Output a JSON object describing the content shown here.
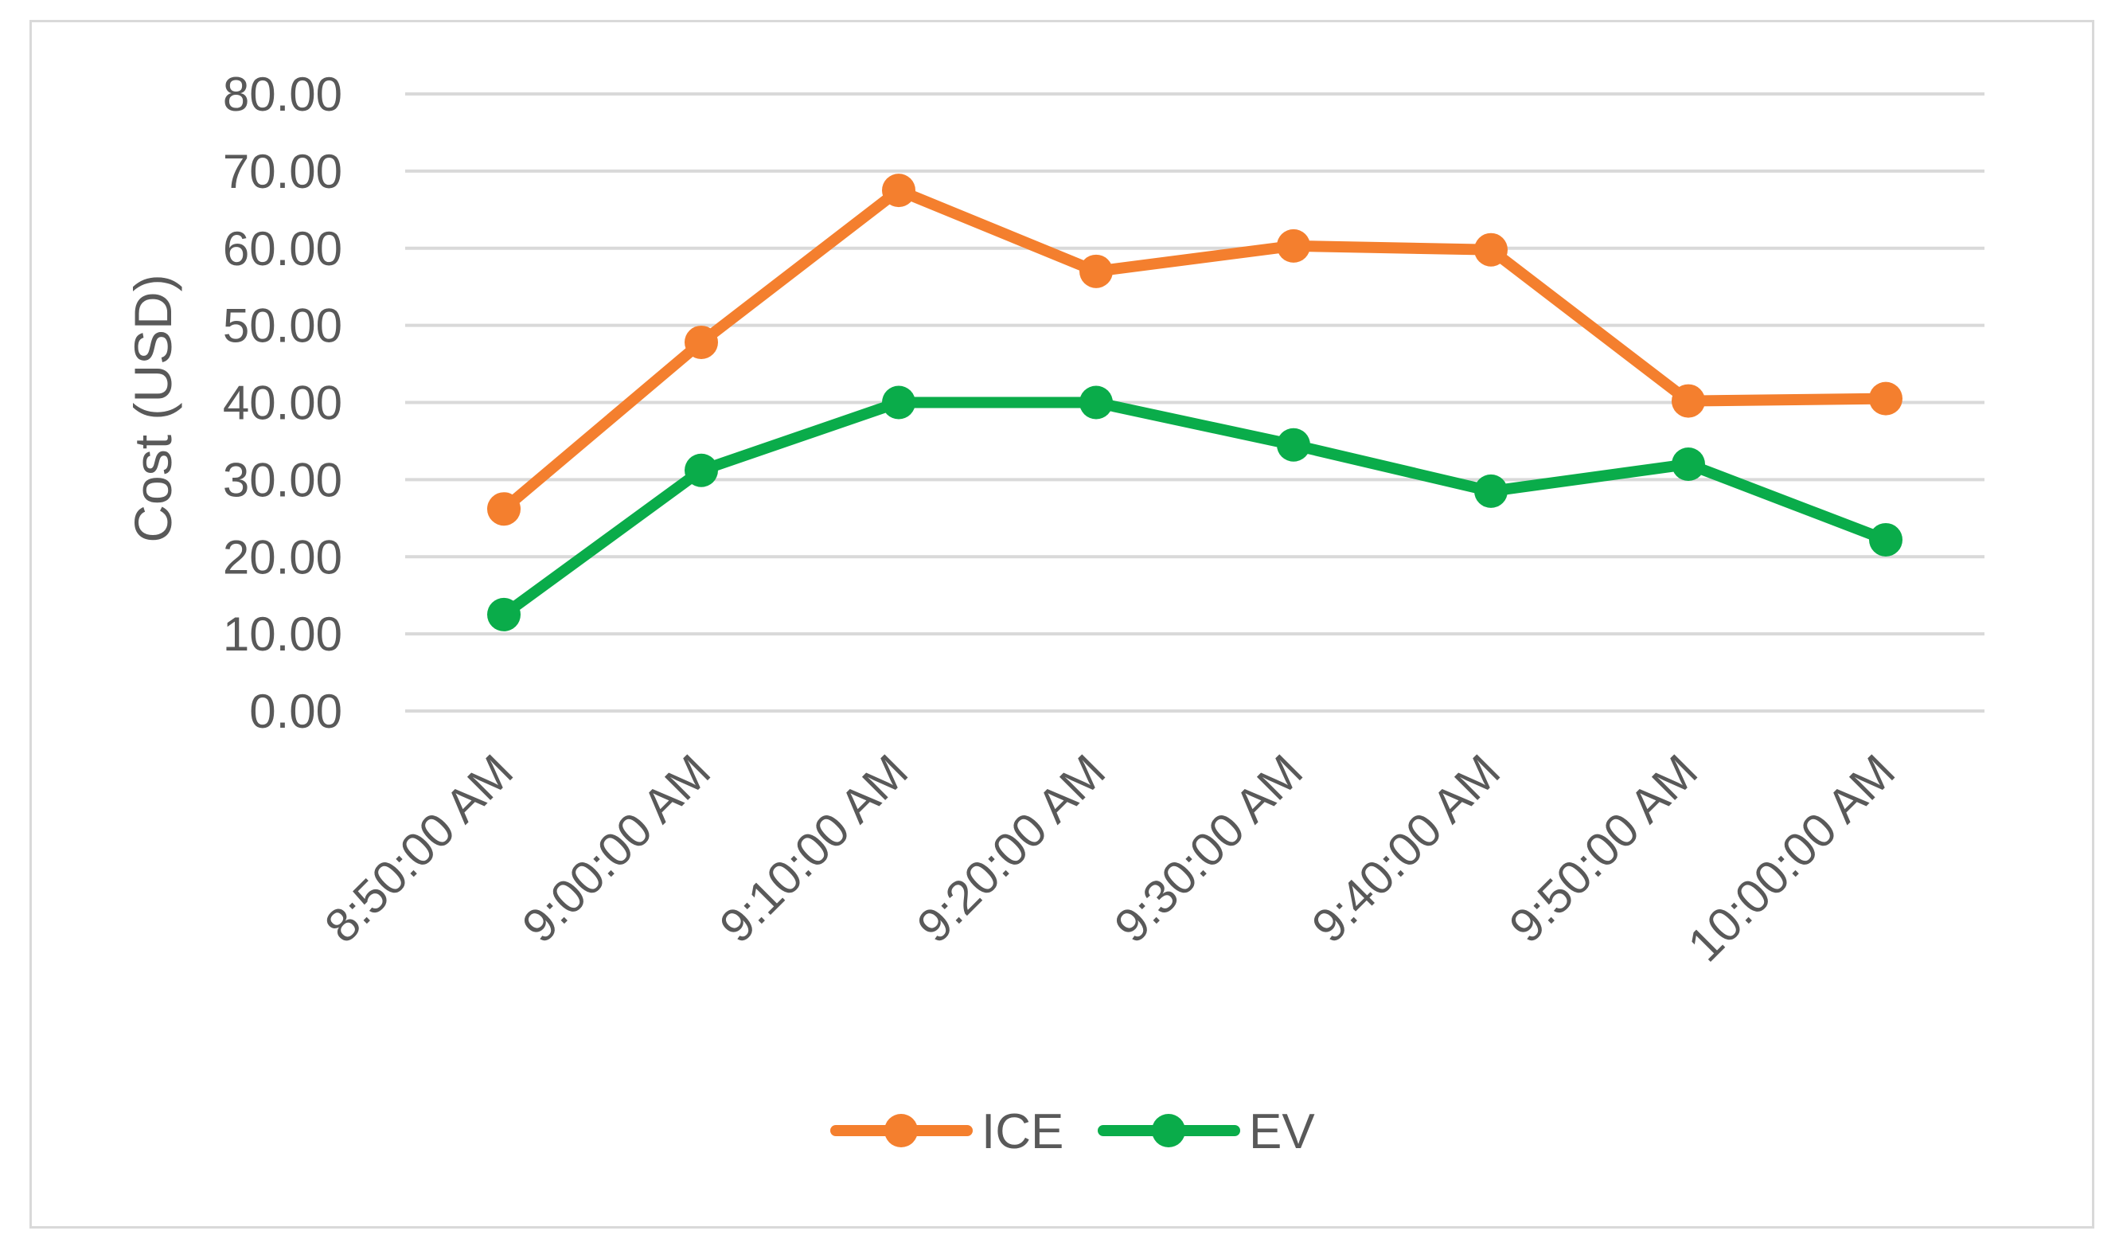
{
  "chart_data": {
    "type": "line",
    "title": "",
    "xlabel": "",
    "ylabel": "Cost (USD)",
    "ylim": [
      0,
      80
    ],
    "y_ticks": [
      "0.00",
      "10.00",
      "20.00",
      "30.00",
      "40.00",
      "50.00",
      "60.00",
      "70.00",
      "80.00"
    ],
    "categories": [
      "8:50:00 AM",
      "9:00:00 AM",
      "9:10:00 AM",
      "9:20:00 AM",
      "9:30:00 AM",
      "9:40:00 AM",
      "9:50:00 AM",
      "10:00:00 AM"
    ],
    "grid": true,
    "legend_position": "bottom",
    "series": [
      {
        "name": "ICE",
        "color": "#f47f2e",
        "values": [
          26.2,
          47.8,
          67.5,
          57.0,
          60.3,
          59.8,
          40.2,
          40.5
        ]
      },
      {
        "name": "EV",
        "color": "#0aac4a",
        "values": [
          12.5,
          31.2,
          40.0,
          40.0,
          34.5,
          28.5,
          32.0,
          22.2
        ]
      }
    ]
  }
}
